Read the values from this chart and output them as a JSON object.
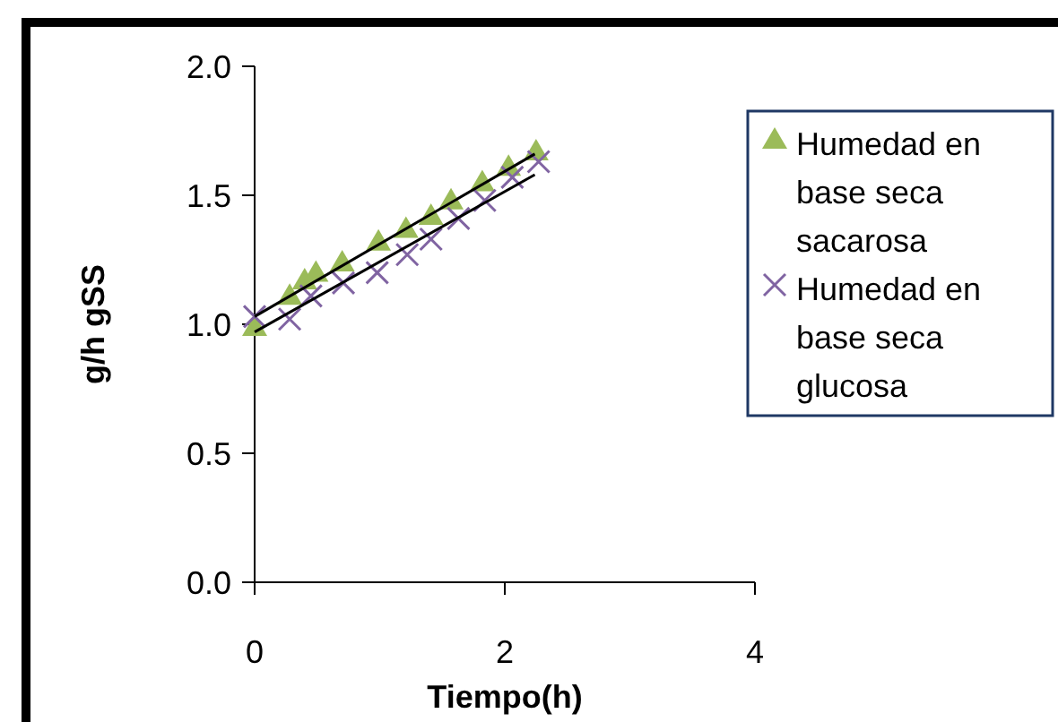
{
  "chart_data": {
    "type": "scatter",
    "xlabel": "Tiempo(h)",
    "ylabel": "g/h gSS",
    "xlim": [
      0,
      4
    ],
    "xticks": [
      0,
      2,
      4
    ],
    "ylim": [
      0,
      2
    ],
    "yticks": [
      {
        "value": 0,
        "label": "0.0"
      },
      {
        "value": 0.5,
        "label": "0.5"
      },
      {
        "value": 1,
        "label": "1.0"
      },
      {
        "value": 1.5,
        "label": "1.5"
      },
      {
        "value": 2,
        "label": "2.0"
      }
    ],
    "grid": false,
    "legend": "right",
    "series": [
      {
        "name": "Humedad en base seca sacarosa",
        "color": "#9bbb59",
        "marker": "triangle",
        "x": [
          0,
          0.28,
          0.4,
          0.49,
          0.7,
          0.99,
          1.21,
          1.41,
          1.57,
          1.82,
          2.03,
          2.25
        ],
        "values": [
          0.99,
          1.11,
          1.17,
          1.2,
          1.24,
          1.32,
          1.37,
          1.42,
          1.48,
          1.55,
          1.61,
          1.67
        ]
      },
      {
        "name": "Humedad en base seca glucosa",
        "color": "#8064a2",
        "marker": "cross",
        "x": [
          0,
          0.28,
          0.45,
          0.71,
          0.98,
          1.22,
          1.41,
          1.63,
          1.84,
          2.06,
          2.27
        ],
        "values": [
          1.03,
          1.02,
          1.11,
          1.16,
          1.2,
          1.27,
          1.33,
          1.41,
          1.48,
          1.57,
          1.63
        ]
      },
      {
        "type": "line",
        "color": "#000000",
        "marker": "none",
        "x": [
          0,
          2.24
        ],
        "values": [
          1.03,
          1.66
        ]
      },
      {
        "type": "line",
        "color": "#000000",
        "marker": "none",
        "x": [
          0,
          2.24
        ],
        "values": [
          0.97,
          1.58
        ]
      }
    ]
  }
}
